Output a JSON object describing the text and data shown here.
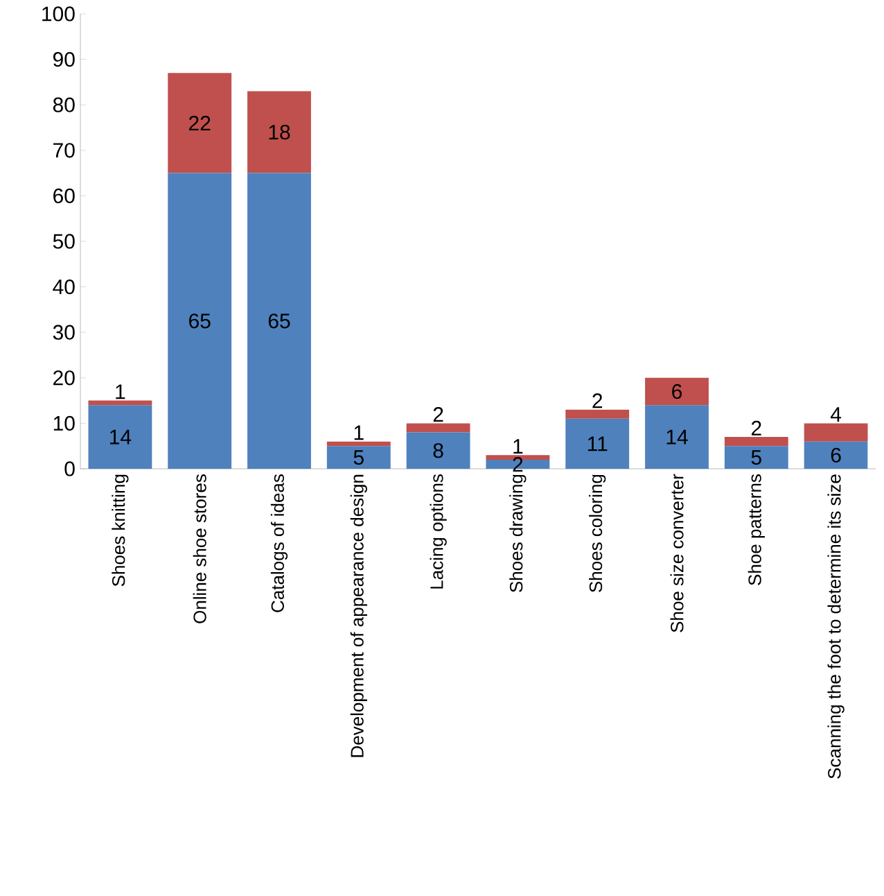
{
  "chart_data": {
    "type": "bar",
    "stacked": true,
    "categories": [
      "Shoes knitting",
      "Online shoe stores",
      "Catalogs of ideas",
      "Development of appearance design",
      "Lacing options",
      "Shoes drawing",
      "Shoes coloring",
      "Shoe size converter",
      "Shoe patterns",
      "Scanning the foot to determine its size"
    ],
    "series": [
      {
        "color": "#4f81bd",
        "values": [
          14,
          65,
          65,
          5,
          8,
          2,
          11,
          14,
          5,
          6
        ]
      },
      {
        "color": "#c0504d",
        "values": [
          1,
          22,
          18,
          1,
          2,
          1,
          2,
          6,
          2,
          4
        ]
      }
    ],
    "ylim": [
      0,
      100
    ],
    "yticks": [
      0,
      10,
      20,
      30,
      40,
      50,
      60,
      70,
      80,
      90,
      100
    ],
    "data_labels": true,
    "grid": false
  }
}
